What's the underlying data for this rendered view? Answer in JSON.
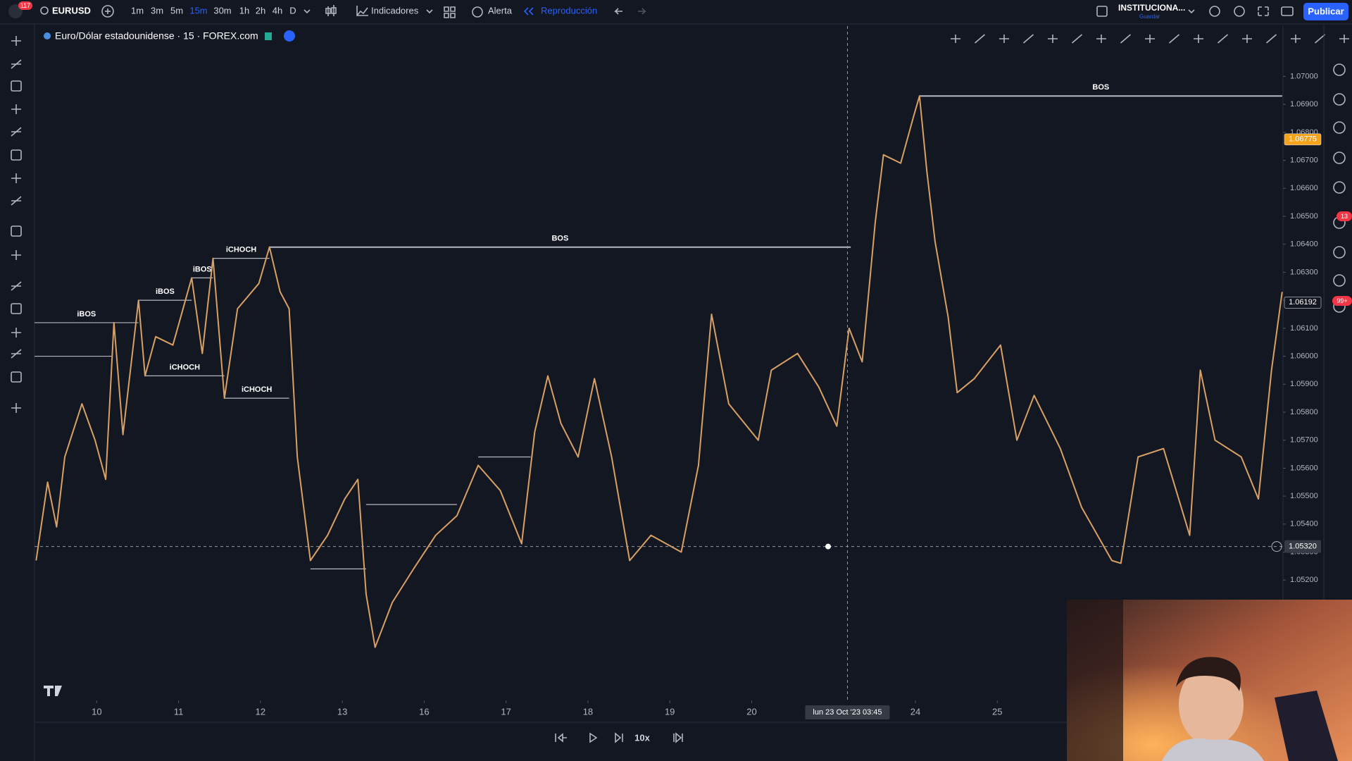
{
  "toolbar": {
    "alerts_badge": "117",
    "symbol": "EURUSD",
    "timeframes": [
      "1m",
      "3m",
      "5m",
      "15m",
      "30m",
      "1h",
      "2h",
      "4h",
      "D"
    ],
    "active_timeframe": "15m",
    "indicators": "Indicadores",
    "alert": "Alerta",
    "replay": "Reproducción",
    "layout_name": "INSTITUCIONA...",
    "layout_save": "Guardar",
    "publish": "Publicar"
  },
  "chart_header": {
    "title": "Euro/Dólar estadounidense · 15 · FOREX.com"
  },
  "right_badges": [
    "13",
    "99+"
  ],
  "replay_bar": {
    "speed": "10x"
  },
  "chart_data": {
    "type": "line",
    "color": "#d9a066",
    "x": [
      -0.74,
      -0.6,
      -0.49,
      -0.39,
      -0.18,
      -0.02,
      0.11,
      0.21,
      0.32,
      0.51,
      0.59,
      0.72,
      0.93,
      1.16,
      1.29,
      1.42,
      1.56,
      1.72,
      1.98,
      2.11,
      2.24,
      2.35,
      2.45,
      2.61,
      2.82,
      3.03,
      3.19,
      3.29,
      3.4,
      3.61,
      3.87,
      4.14,
      4.4,
      4.66,
      4.93,
      5.19,
      5.35,
      5.51,
      5.67,
      5.88,
      6.08,
      6.29,
      6.51,
      6.77,
      7.14,
      7.35,
      7.51,
      7.72,
      8.08,
      8.24,
      8.56,
      8.82,
      9.04,
      9.19,
      9.35,
      9.51,
      9.61,
      9.82,
      9.98,
      10.05,
      10.14,
      10.24,
      10.4,
      10.51,
      10.72,
      11.04,
      11.24,
      11.45,
      11.77,
      12.03,
      12.4,
      12.51,
      12.72,
      13.03,
      13.35,
      13.48,
      13.66,
      13.98,
      14.19,
      14.35,
      14.48
    ],
    "values": [
      1.0527,
      1.0555,
      1.0539,
      1.0564,
      1.0583,
      1.057,
      1.0556,
      1.0612,
      1.0572,
      1.062,
      1.0593,
      1.0607,
      1.0604,
      1.0628,
      1.0601,
      1.0635,
      1.0585,
      1.0617,
      1.0626,
      1.0639,
      1.0623,
      1.0617,
      1.0564,
      1.0527,
      1.0536,
      1.0549,
      1.0556,
      1.0515,
      1.0496,
      1.0512,
      1.0524,
      1.0536,
      1.0543,
      1.0561,
      1.0552,
      1.0533,
      1.0573,
      1.0593,
      1.0576,
      1.0564,
      1.0592,
      1.0564,
      1.0527,
      1.0536,
      1.053,
      1.0561,
      1.0615,
      1.0583,
      1.057,
      1.0595,
      1.0601,
      1.0589,
      1.0575,
      1.061,
      1.0598,
      1.0648,
      1.0672,
      1.0669,
      1.0686,
      1.0693,
      1.0666,
      1.0641,
      1.0614,
      1.0587,
      1.0592,
      1.0604,
      1.057,
      1.0586,
      1.0567,
      1.0546,
      1.0527,
      1.0526,
      1.0564,
      1.0567,
      1.0536,
      1.0595,
      1.057,
      1.0564,
      1.0549,
      1.0595,
      1.0623
    ],
    "xlim": [
      -0.76,
      14.49
    ],
    "ylim": [
      1.0477,
      1.0718
    ],
    "xticks": [
      {
        "value": 0,
        "label": "10"
      },
      {
        "value": 1,
        "label": "11"
      },
      {
        "value": 2,
        "label": "12"
      },
      {
        "value": 3,
        "label": "13"
      },
      {
        "value": 4,
        "label": "16"
      },
      {
        "value": 5,
        "label": "17"
      },
      {
        "value": 6,
        "label": "18"
      },
      {
        "value": 7,
        "label": "19"
      },
      {
        "value": 8,
        "label": "20"
      },
      {
        "value": 10,
        "label": "24"
      },
      {
        "value": 11,
        "label": "25"
      }
    ],
    "yticks": [
      {
        "value": 1.052,
        "label": "1.05200"
      },
      {
        "value": 1.053,
        "label": "1.05300"
      },
      {
        "value": 1.054,
        "label": "1.05400"
      },
      {
        "value": 1.055,
        "label": "1.05500"
      },
      {
        "value": 1.056,
        "label": "1.05600"
      },
      {
        "value": 1.057,
        "label": "1.05700"
      },
      {
        "value": 1.058,
        "label": "1.05800"
      },
      {
        "value": 1.059,
        "label": "1.05900"
      },
      {
        "value": 1.06,
        "label": "1.06000"
      },
      {
        "value": 1.061,
        "label": "1.06100"
      },
      {
        "value": 1.062,
        "label": "1.06200"
      },
      {
        "value": 1.063,
        "label": "1.06300"
      },
      {
        "value": 1.064,
        "label": "1.06400"
      },
      {
        "value": 1.065,
        "label": "1.06500"
      },
      {
        "value": 1.066,
        "label": "1.06600"
      },
      {
        "value": 1.067,
        "label": "1.06700"
      },
      {
        "value": 1.068,
        "label": "1.06800"
      },
      {
        "value": 1.069,
        "label": "1.06900"
      },
      {
        "value": 1.07,
        "label": "1.07000"
      }
    ],
    "structure": [
      {
        "label": "BOS",
        "value": 1.0639,
        "from": 2.11,
        "to": 9.21
      },
      {
        "label": "BOS",
        "value": 1.0693,
        "from": 10.05,
        "to": 14.48
      },
      {
        "label": "iBOS",
        "value": 1.0612,
        "from": -0.76,
        "to": 0.51
      },
      {
        "label": "iBOS",
        "value": 1.062,
        "from": 0.51,
        "to": 1.16
      },
      {
        "label": "iBOS",
        "value": 1.0628,
        "from": 1.16,
        "to": 1.42
      },
      {
        "label": "iCHOCH",
        "value": 1.0635,
        "from": 1.42,
        "to": 2.11
      },
      {
        "label": "iCHOCH",
        "value": 1.0593,
        "from": 0.59,
        "to": 1.56
      },
      {
        "label": "iCHOCH",
        "value": 1.0585,
        "from": 1.56,
        "to": 2.35
      },
      {
        "value": 1.06,
        "from": -0.76,
        "to": 0.19
      },
      {
        "value": 1.0564,
        "from": 4.66,
        "to": 5.3
      },
      {
        "value": 1.0547,
        "from": 3.29,
        "to": 4.4
      },
      {
        "value": 1.0524,
        "from": 2.61,
        "to": 3.29
      }
    ],
    "price_tags": [
      {
        "value": 1.06775,
        "label": "1.06775",
        "color": "#f7a21b"
      },
      {
        "value": 1.06192,
        "label": "1.06192",
        "color": "#131722"
      }
    ],
    "crosshair": {
      "x": 9.17,
      "y": 1.0532,
      "x_label": "lun 23 Oct '23  03:45",
      "y_label": "1.05320"
    }
  }
}
